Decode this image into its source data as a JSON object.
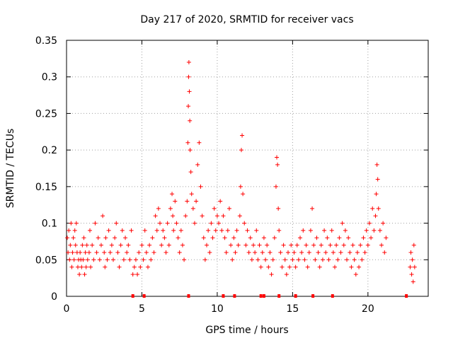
{
  "chart_data": {
    "type": "scatter",
    "title": "Day 217 of 2020, SRMTID for receiver vacs",
    "xlabel": "GPS time / hours",
    "ylabel": "SRMTID / TECUs",
    "xlim": [
      0,
      24
    ],
    "ylim": [
      0,
      0.35
    ],
    "x_ticks": [
      0,
      5,
      10,
      15,
      20
    ],
    "x_tick_labels": [
      "0",
      "5",
      "10",
      "15",
      "20"
    ],
    "y_ticks": [
      0,
      0.05,
      0.1,
      0.15,
      0.2,
      0.25,
      0.3,
      0.35
    ],
    "y_tick_labels": [
      "0",
      "0.05",
      "0.1",
      "0.15",
      "0.2",
      "0.25",
      "0.3",
      "0.35"
    ],
    "grid": true,
    "marker": "+",
    "marker_color": "#ff0000",
    "series": [
      {
        "name": "SRMTID",
        "points": [
          [
            0.05,
            0.08
          ],
          [
            0.1,
            0.06
          ],
          [
            0.15,
            0.09
          ],
          [
            0.2,
            0.05
          ],
          [
            0.25,
            0.07
          ],
          [
            0.3,
            0.1
          ],
          [
            0.35,
            0.04
          ],
          [
            0.4,
            0.06
          ],
          [
            0.45,
            0.08
          ],
          [
            0.5,
            0.05
          ],
          [
            0.55,
            0.09
          ],
          [
            0.6,
            0.07
          ],
          [
            0.65,
            0.1
          ],
          [
            0.7,
            0.06
          ],
          [
            0.75,
            0.04
          ],
          [
            0.8,
            0.05
          ],
          [
            0.85,
            0.03
          ],
          [
            0.9,
            0.06
          ],
          [
            0.95,
            0.05
          ],
          [
            1.0,
            0.04
          ],
          [
            1.05,
            0.07
          ],
          [
            1.1,
            0.05
          ],
          [
            1.15,
            0.08
          ],
          [
            1.2,
            0.03
          ],
          [
            1.25,
            0.06
          ],
          [
            1.3,
            0.04
          ],
          [
            1.35,
            0.07
          ],
          [
            1.4,
            0.05
          ],
          [
            1.5,
            0.06
          ],
          [
            1.55,
            0.09
          ],
          [
            1.6,
            0.04
          ],
          [
            1.7,
            0.07
          ],
          [
            1.8,
            0.05
          ],
          [
            1.9,
            0.1
          ],
          [
            2.0,
            0.06
          ],
          [
            2.1,
            0.08
          ],
          [
            2.2,
            0.05
          ],
          [
            2.3,
            0.07
          ],
          [
            2.4,
            0.11
          ],
          [
            2.5,
            0.06
          ],
          [
            2.55,
            0.04
          ],
          [
            2.6,
            0.08
          ],
          [
            2.7,
            0.05
          ],
          [
            2.8,
            0.09
          ],
          [
            2.9,
            0.06
          ],
          [
            3.0,
            0.07
          ],
          [
            3.1,
            0.05
          ],
          [
            3.2,
            0.08
          ],
          [
            3.3,
            0.1
          ],
          [
            3.4,
            0.06
          ],
          [
            3.5,
            0.04
          ],
          [
            3.6,
            0.07
          ],
          [
            3.7,
            0.09
          ],
          [
            3.8,
            0.05
          ],
          [
            3.9,
            0.08
          ],
          [
            4.0,
            0.06
          ],
          [
            4.1,
            0.07
          ],
          [
            4.2,
            0.05
          ],
          [
            4.3,
            0.09
          ],
          [
            4.4,
            0.03
          ],
          [
            4.5,
            0.04
          ],
          [
            4.6,
            0.05
          ],
          [
            4.7,
            0.03
          ],
          [
            4.8,
            0.06
          ],
          [
            4.9,
            0.04
          ],
          [
            5.0,
            0.07
          ],
          [
            5.1,
            0.05
          ],
          [
            5.2,
            0.09
          ],
          [
            5.3,
            0.06
          ],
          [
            5.4,
            0.04
          ],
          [
            5.5,
            0.07
          ],
          [
            5.6,
            0.05
          ],
          [
            5.7,
            0.08
          ],
          [
            5.8,
            0.06
          ],
          [
            5.9,
            0.11
          ],
          [
            6.0,
            0.09
          ],
          [
            6.1,
            0.12
          ],
          [
            6.2,
            0.1
          ],
          [
            6.3,
            0.07
          ],
          [
            6.4,
            0.09
          ],
          [
            6.5,
            0.08
          ],
          [
            6.6,
            0.06
          ],
          [
            6.7,
            0.1
          ],
          [
            6.8,
            0.07
          ],
          [
            6.9,
            0.12
          ],
          [
            7.0,
            0.14
          ],
          [
            7.05,
            0.11
          ],
          [
            7.1,
            0.09
          ],
          [
            7.2,
            0.13
          ],
          [
            7.3,
            0.1
          ],
          [
            7.4,
            0.08
          ],
          [
            7.5,
            0.06
          ],
          [
            7.6,
            0.09
          ],
          [
            7.7,
            0.07
          ],
          [
            7.8,
            0.05
          ],
          [
            7.9,
            0.11
          ],
          [
            8.0,
            0.13
          ],
          [
            8.05,
            0.21
          ],
          [
            8.08,
            0.26
          ],
          [
            8.1,
            0.3
          ],
          [
            8.12,
            0.32
          ],
          [
            8.15,
            0.28
          ],
          [
            8.18,
            0.24
          ],
          [
            8.2,
            0.2
          ],
          [
            8.25,
            0.17
          ],
          [
            8.3,
            0.14
          ],
          [
            8.4,
            0.12
          ],
          [
            8.5,
            0.1
          ],
          [
            8.6,
            0.13
          ],
          [
            8.7,
            0.18
          ],
          [
            8.8,
            0.21
          ],
          [
            8.9,
            0.15
          ],
          [
            9.0,
            0.11
          ],
          [
            9.1,
            0.08
          ],
          [
            9.2,
            0.05
          ],
          [
            9.3,
            0.07
          ],
          [
            9.4,
            0.09
          ],
          [
            9.5,
            0.06
          ],
          [
            9.6,
            0.1
          ],
          [
            9.7,
            0.08
          ],
          [
            9.8,
            0.12
          ],
          [
            9.9,
            0.09
          ],
          [
            10.0,
            0.11
          ],
          [
            10.1,
            0.1
          ],
          [
            10.2,
            0.13
          ],
          [
            10.3,
            0.09
          ],
          [
            10.4,
            0.11
          ],
          [
            10.5,
            0.08
          ],
          [
            10.6,
            0.06
          ],
          [
            10.7,
            0.09
          ],
          [
            10.8,
            0.12
          ],
          [
            10.9,
            0.07
          ],
          [
            11.0,
            0.05
          ],
          [
            11.1,
            0.08
          ],
          [
            11.2,
            0.06
          ],
          [
            11.3,
            0.09
          ],
          [
            11.4,
            0.07
          ],
          [
            11.5,
            0.11
          ],
          [
            11.55,
            0.15
          ],
          [
            11.6,
            0.2
          ],
          [
            11.65,
            0.22
          ],
          [
            11.7,
            0.14
          ],
          [
            11.8,
            0.1
          ],
          [
            11.9,
            0.07
          ],
          [
            12.0,
            0.09
          ],
          [
            12.1,
            0.06
          ],
          [
            12.2,
            0.08
          ],
          [
            12.3,
            0.05
          ],
          [
            12.4,
            0.07
          ],
          [
            12.5,
            0.06
          ],
          [
            12.6,
            0.09
          ],
          [
            12.7,
            0.05
          ],
          [
            12.8,
            0.07
          ],
          [
            12.9,
            0.04
          ],
          [
            13.0,
            0.06
          ],
          [
            13.1,
            0.08
          ],
          [
            13.2,
            0.05
          ],
          [
            13.3,
            0.07
          ],
          [
            13.4,
            0.04
          ],
          [
            13.5,
            0.06
          ],
          [
            13.6,
            0.03
          ],
          [
            13.7,
            0.05
          ],
          [
            13.8,
            0.08
          ],
          [
            13.9,
            0.15
          ],
          [
            13.95,
            0.19
          ],
          [
            14.0,
            0.18
          ],
          [
            14.05,
            0.12
          ],
          [
            14.1,
            0.09
          ],
          [
            14.2,
            0.06
          ],
          [
            14.3,
            0.04
          ],
          [
            14.4,
            0.07
          ],
          [
            14.5,
            0.05
          ],
          [
            14.6,
            0.03
          ],
          [
            14.7,
            0.06
          ],
          [
            14.8,
            0.04
          ],
          [
            14.9,
            0.07
          ],
          [
            15.0,
            0.05
          ],
          [
            15.1,
            0.06
          ],
          [
            15.2,
            0.04
          ],
          [
            15.3,
            0.07
          ],
          [
            15.4,
            0.05
          ],
          [
            15.5,
            0.08
          ],
          [
            15.6,
            0.06
          ],
          [
            15.7,
            0.09
          ],
          [
            15.8,
            0.05
          ],
          [
            15.9,
            0.07
          ],
          [
            16.0,
            0.04
          ],
          [
            16.1,
            0.06
          ],
          [
            16.2,
            0.09
          ],
          [
            16.3,
            0.12
          ],
          [
            16.4,
            0.07
          ],
          [
            16.5,
            0.05
          ],
          [
            16.6,
            0.08
          ],
          [
            16.7,
            0.06
          ],
          [
            16.8,
            0.04
          ],
          [
            16.9,
            0.07
          ],
          [
            17.0,
            0.05
          ],
          [
            17.1,
            0.09
          ],
          [
            17.2,
            0.06
          ],
          [
            17.3,
            0.08
          ],
          [
            17.4,
            0.05
          ],
          [
            17.5,
            0.07
          ],
          [
            17.6,
            0.09
          ],
          [
            17.7,
            0.06
          ],
          [
            17.8,
            0.04
          ],
          [
            17.9,
            0.07
          ],
          [
            18.0,
            0.05
          ],
          [
            18.1,
            0.08
          ],
          [
            18.2,
            0.06
          ],
          [
            18.3,
            0.1
          ],
          [
            18.4,
            0.07
          ],
          [
            18.5,
            0.09
          ],
          [
            18.6,
            0.05
          ],
          [
            18.7,
            0.08
          ],
          [
            18.8,
            0.06
          ],
          [
            18.9,
            0.04
          ],
          [
            19.0,
            0.07
          ],
          [
            19.1,
            0.05
          ],
          [
            19.2,
            0.03
          ],
          [
            19.3,
            0.06
          ],
          [
            19.4,
            0.04
          ],
          [
            19.5,
            0.07
          ],
          [
            19.6,
            0.05
          ],
          [
            19.7,
            0.08
          ],
          [
            19.8,
            0.06
          ],
          [
            19.9,
            0.09
          ],
          [
            20.0,
            0.07
          ],
          [
            20.1,
            0.1
          ],
          [
            20.2,
            0.08
          ],
          [
            20.3,
            0.12
          ],
          [
            20.4,
            0.09
          ],
          [
            20.5,
            0.11
          ],
          [
            20.55,
            0.14
          ],
          [
            20.6,
            0.18
          ],
          [
            20.65,
            0.16
          ],
          [
            20.7,
            0.12
          ],
          [
            20.8,
            0.09
          ],
          [
            20.9,
            0.07
          ],
          [
            21.0,
            0.1
          ],
          [
            21.1,
            0.06
          ],
          [
            21.2,
            0.08
          ],
          [
            22.8,
            0.04
          ],
          [
            22.85,
            0.06
          ],
          [
            22.9,
            0.03
          ],
          [
            22.95,
            0.05
          ],
          [
            23.0,
            0.02
          ],
          [
            23.05,
            0.07
          ],
          [
            23.1,
            0.04
          ]
        ]
      }
    ],
    "axis_markers_x": [
      4.4,
      5.15,
      8.1,
      10.4,
      11.15,
      12.9,
      13.1,
      14.1,
      15.2,
      16.35,
      17.65,
      22.55
    ]
  }
}
